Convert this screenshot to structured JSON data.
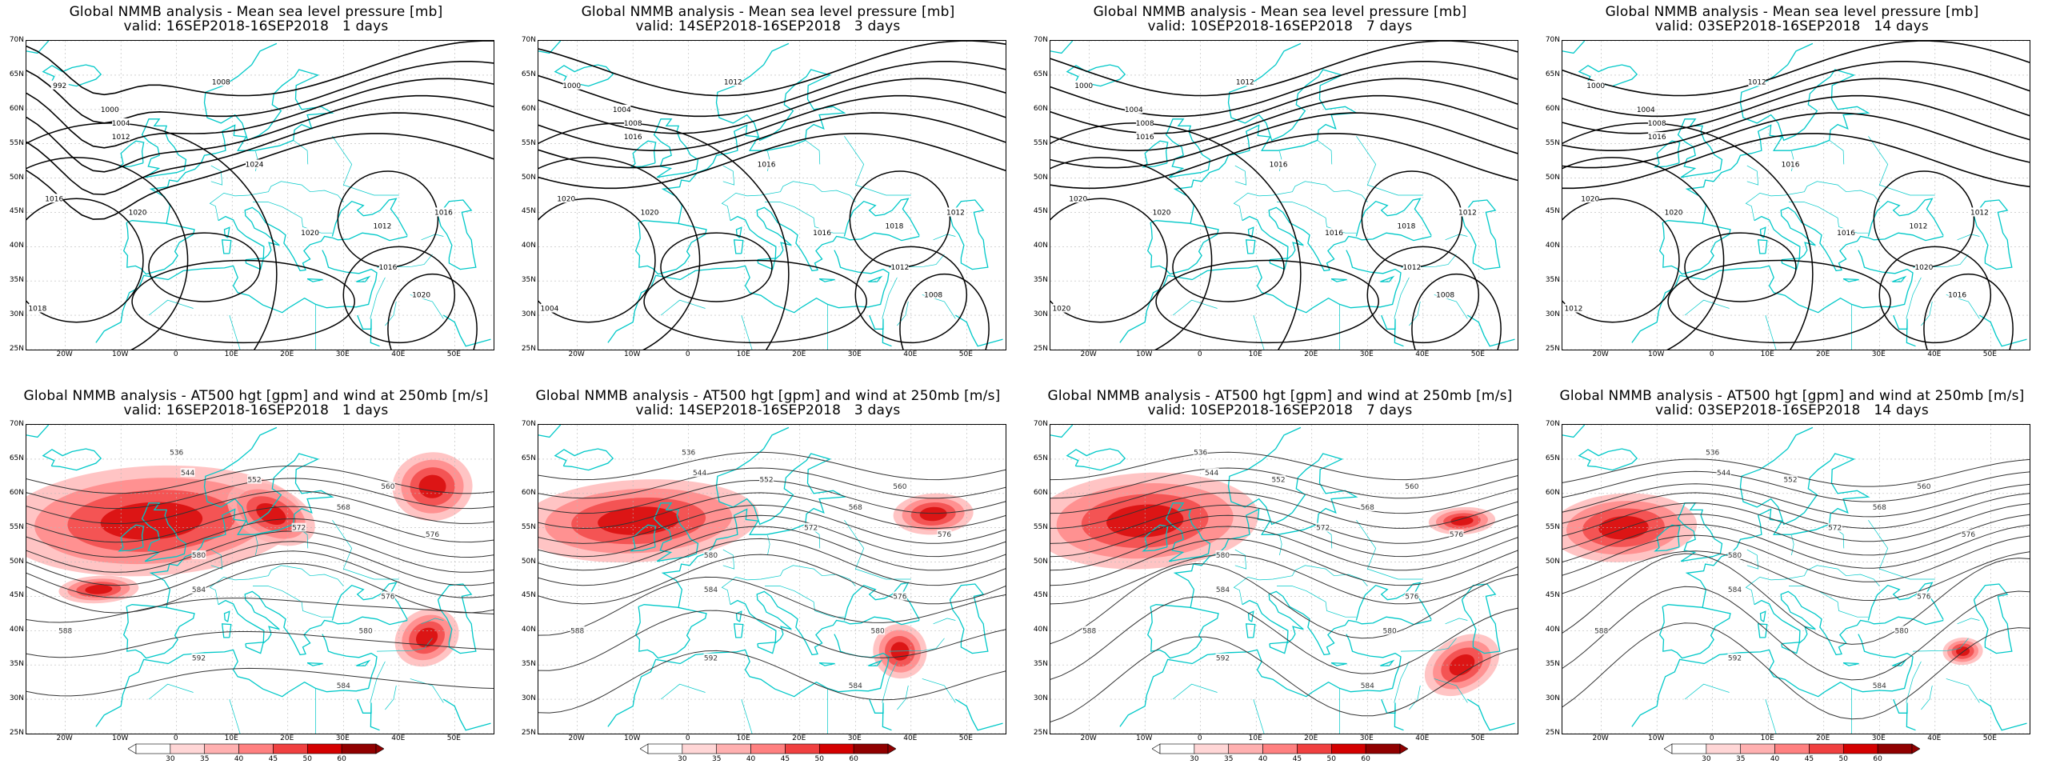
{
  "panels": [
    {
      "title_line1": "Global NMMB analysis - Mean sea level pressure [mb]",
      "title_line2": "valid: 16SEP2018-16SEP2018   1 days",
      "field": "mslp"
    },
    {
      "title_line1": "Global NMMB analysis - Mean sea level pressure [mb]",
      "title_line2": "valid: 14SEP2018-16SEP2018   3 days",
      "field": "mslp"
    },
    {
      "title_line1": "Global NMMB analysis - Mean sea level pressure [mb]",
      "title_line2": "valid: 10SEP2018-16SEP2018   7 days",
      "field": "mslp"
    },
    {
      "title_line1": "Global NMMB analysis - Mean sea level pressure [mb]",
      "title_line2": "valid: 03SEP2018-16SEP2018   14 days",
      "field": "mslp"
    },
    {
      "title_line1": "Global NMMB analysis - AT500 hgt [gpm] and wind at 250mb [m/s]",
      "title_line2": "valid: 16SEP2018-16SEP2018   1 days",
      "field": "hgt"
    },
    {
      "title_line1": "Global NMMB analysis - AT500 hgt [gpm] and wind at 250mb [m/s]",
      "title_line2": "valid: 14SEP2018-16SEP2018   3 days",
      "field": "hgt"
    },
    {
      "title_line1": "Global NMMB analysis - AT500 hgt [gpm] and wind at 250mb [m/s]",
      "title_line2": "valid: 10SEP2018-16SEP2018   7 days",
      "field": "hgt"
    },
    {
      "title_line1": "Global NMMB analysis - AT500 hgt [gpm] and wind at 250mb [m/s]",
      "title_line2": "valid: 03SEP2018-16SEP2018   14 days",
      "field": "hgt"
    }
  ],
  "map": {
    "lon_labels": [
      "20W",
      "10W",
      "0",
      "10E",
      "20E",
      "30E",
      "40E",
      "50E"
    ],
    "lon_values": [
      -20,
      -10,
      0,
      10,
      20,
      30,
      40,
      50
    ],
    "lon_range": [
      -27,
      57
    ],
    "lat_labels": [
      "70N",
      "65N",
      "60N",
      "55N",
      "50N",
      "45N",
      "40N",
      "35N",
      "30N",
      "25N"
    ],
    "lat_values": [
      70,
      65,
      60,
      55,
      50,
      45,
      40,
      35,
      30,
      25
    ],
    "lat_range": [
      25,
      70
    ],
    "coast_color": "#00c8c8",
    "contour_color_mslp": "#000000",
    "contour_color_hgt": "#333333"
  },
  "mslp_labels": [
    [
      "992",
      "1000",
      "1004",
      "1008",
      "1012",
      "1016",
      "1020",
      "1024",
      "1016",
      "1020",
      "1012",
      "1016",
      "1020",
      "1018"
    ],
    [
      "1000",
      "1004",
      "1008",
      "1012",
      "1016",
      "1020",
      "1020",
      "1016",
      "1012",
      "1016",
      "1018",
      "1012",
      "1008",
      "1004"
    ],
    [
      "1000",
      "1004",
      "1008",
      "1012",
      "1016",
      "1020",
      "1020",
      "1016",
      "1012",
      "1016",
      "1018",
      "1012",
      "1008",
      "1020"
    ],
    [
      "1000",
      "1004",
      "1008",
      "1012",
      "1016",
      "1020",
      "1020",
      "1016",
      "1012",
      "1016",
      "1012",
      "1020",
      "1016",
      "1012"
    ]
  ],
  "hgt_labels": [
    [
      "536",
      "544",
      "552",
      "560",
      "568",
      "572",
      "576",
      "580",
      "584",
      "588",
      "592",
      "584",
      "576",
      "580"
    ],
    [
      "536",
      "544",
      "552",
      "560",
      "568",
      "572",
      "576",
      "580",
      "584",
      "588",
      "592",
      "584",
      "576",
      "580"
    ],
    [
      "536",
      "544",
      "552",
      "560",
      "568",
      "572",
      "576",
      "580",
      "584",
      "588",
      "592",
      "584",
      "576",
      "580"
    ],
    [
      "536",
      "544",
      "552",
      "560",
      "568",
      "572",
      "576",
      "580",
      "584",
      "588",
      "592",
      "584",
      "576",
      "580"
    ]
  ],
  "colorbar": {
    "labels": [
      "30",
      "35",
      "40",
      "45",
      "50",
      "60"
    ],
    "colors": [
      "#ffffff",
      "#ffd6d6",
      "#ffb0b0",
      "#ff8080",
      "#f04040",
      "#d40000",
      "#900000"
    ]
  }
}
